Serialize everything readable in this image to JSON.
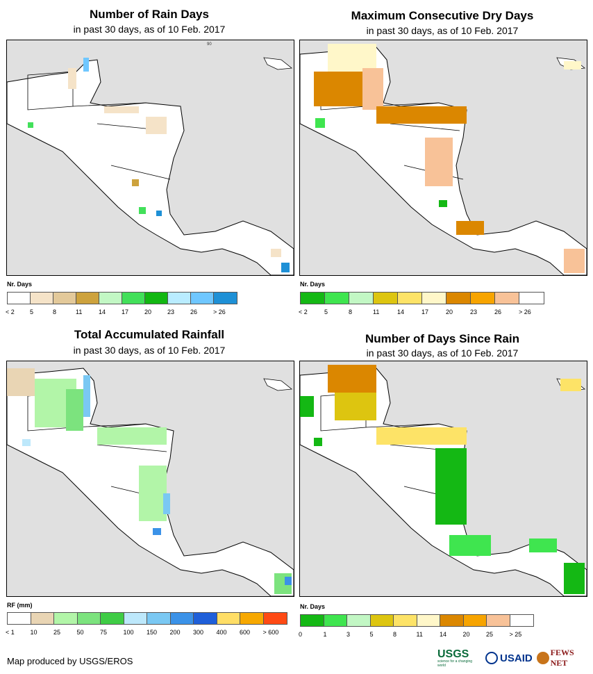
{
  "panels": {
    "rain_days": {
      "title": "Number of Rain Days",
      "subtitle": "in past 30 days, as of 10 Feb. 2017",
      "legend_title": "Nr. Days",
      "legend_labels": [
        "< 2",
        "5",
        "8",
        "11",
        "14",
        "17",
        "20",
        "23",
        "26",
        "> 26"
      ],
      "legend_colors": [
        "#ffffff",
        "#f5e3c8",
        "#e3c99a",
        "#cda23d",
        "#c2f7c4",
        "#42e05a",
        "#12b712",
        "#b9ecff",
        "#6fc7ff",
        "#1e90d6"
      ]
    },
    "dry_days": {
      "title": "Maximum Consecutive Dry Days",
      "subtitle": "in past 30 days, as of 10 Feb. 2017",
      "legend_title": "Nr. Days",
      "legend_labels": [
        "< 2",
        "5",
        "8",
        "11",
        "14",
        "17",
        "20",
        "23",
        "26",
        "> 26"
      ],
      "legend_colors": [
        "#14b814",
        "#3fe54f",
        "#c2f7c4",
        "#ddc510",
        "#fde367",
        "#fff7c9",
        "#db8700",
        "#f7a400",
        "#f8c298",
        "#ffffff"
      ]
    },
    "rainfall": {
      "title": "Total Accumulated Rainfall",
      "subtitle": "in past 30 days, as of 10 Feb. 2017",
      "legend_title": "RF (mm)",
      "legend_labels": [
        "< 1",
        "10",
        "25",
        "50",
        "75",
        "100",
        "150",
        "200",
        "300",
        "400",
        "600",
        "> 600"
      ],
      "legend_colors": [
        "#ffffff",
        "#e9d5b4",
        "#b2f5a8",
        "#7ce37e",
        "#3fcc45",
        "#bde8fb",
        "#7ac8f3",
        "#3b92e8",
        "#1f5fd9",
        "#ffde66",
        "#f7a800",
        "#ff4a14"
      ]
    },
    "days_since": {
      "title": "Number of Days Since Rain",
      "subtitle": "in past 30 days, as of 10 Feb. 2017",
      "legend_title": "Nr. Days",
      "legend_labels": [
        "0",
        "1",
        "3",
        "5",
        "8",
        "11",
        "14",
        "20",
        "25",
        "> 25"
      ],
      "legend_colors": [
        "#14b814",
        "#3fe54f",
        "#c2f7c4",
        "#ddc510",
        "#fde367",
        "#fff7c9",
        "#db8700",
        "#f7a400",
        "#f8c298",
        "#ffffff"
      ]
    }
  },
  "credit": "Map produced by USGS/EROS",
  "logos": {
    "usgs": "USGS",
    "usgs_tagline": "science for a changing world",
    "usaid": "USAID",
    "fews": "FEWS NET"
  },
  "map_tick": "90"
}
